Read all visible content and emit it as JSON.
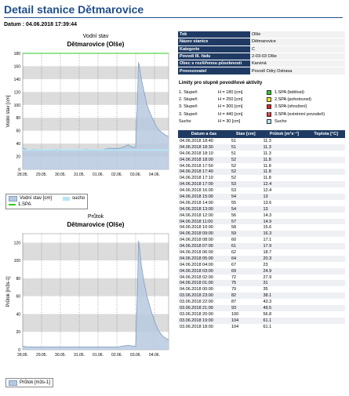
{
  "page": {
    "title": "Detail stanice Dětmarovice",
    "datum": "Datum : 04.06.2018 17:39:44"
  },
  "info": [
    {
      "key": "Tok",
      "value": "Olše"
    },
    {
      "key": "Název stanice",
      "value": "Dětmarovice"
    },
    {
      "key": "Kategorie",
      "value": "C"
    },
    {
      "key": "Povodí III. řádu",
      "value": "2-03-03 Olše"
    },
    {
      "key": "Obec s rozšířenou působností",
      "value": "Karviná"
    },
    {
      "key": "Provozovatel",
      "value": "Povodí Odry Ostrava"
    }
  ],
  "limits": {
    "heading": "Limity pro stupně povodňové aktivity",
    "rows": [
      {
        "level": "1. Stupeň",
        "value": "H = 180 [cm]",
        "color": "#2ecc1f",
        "mark": "",
        "desc": "1.SPA (bdělost)"
      },
      {
        "level": "2. Stupeň",
        "value": "H = 250 [cm]",
        "color": "#f5e11a",
        "mark": "",
        "desc": "2.SPA (pohotovost)"
      },
      {
        "level": "3. Stupeň",
        "value": "H = 300 [cm]",
        "color": "#e02020",
        "mark": "",
        "desc": "3.SPA (ohrožení)"
      },
      {
        "level": "3. Stupeň",
        "value": "H = 440 [cm]",
        "color": "#e02020",
        "mark": "!",
        "desc": "3.SPA (extrémní povodeň)"
      },
      {
        "level": "Sucho",
        "value": "H = 30 [cm]",
        "color": "#b8e4f5",
        "mark": "",
        "desc": "Sucho"
      }
    ]
  },
  "table": {
    "headers": [
      "Datum a čas",
      "Stav [cm]",
      "Průtok [m³s⁻¹]",
      "Teplota [°C]"
    ],
    "rows": [
      [
        "04.06.2018 18:40",
        "51",
        "11.3",
        ""
      ],
      [
        "04.06.2018 18:30",
        "51",
        "11.3",
        ""
      ],
      [
        "04.06.2018 18:10",
        "51",
        "11.3",
        ""
      ],
      [
        "04.06.2018 18:00",
        "52",
        "11.8",
        ""
      ],
      [
        "04.06.2018 17:50",
        "52",
        "11.8",
        ""
      ],
      [
        "04.06.2018 17:40",
        "52",
        "11.8",
        ""
      ],
      [
        "04.06.2018 17:10",
        "52",
        "11.8",
        ""
      ],
      [
        "04.06.2018 17:00",
        "53",
        "12.4",
        ""
      ],
      [
        "04.06.2018 16:00",
        "53",
        "12.4",
        ""
      ],
      [
        "04.06.2018 15:00",
        "54",
        "13",
        ""
      ],
      [
        "04.06.2018 14:00",
        "55",
        "13.6",
        ""
      ],
      [
        "04.06.2018 13:00",
        "54",
        "13",
        ""
      ],
      [
        "04.06.2018 12:00",
        "56",
        "14.3",
        ""
      ],
      [
        "04.06.2018 11:00",
        "57",
        "14.9",
        ""
      ],
      [
        "04.06.2018 10:00",
        "58",
        "15.6",
        ""
      ],
      [
        "04.06.2018 09:00",
        "59",
        "16.3",
        ""
      ],
      [
        "04.06.2018 08:00",
        "60",
        "17.1",
        ""
      ],
      [
        "04.06.2018 07:00",
        "61",
        "17.9",
        ""
      ],
      [
        "04.06.2018 06:00",
        "62",
        "18.7",
        ""
      ],
      [
        "04.06.2018 05:00",
        "64",
        "20.3",
        ""
      ],
      [
        "04.06.2018 04:00",
        "67",
        "23",
        ""
      ],
      [
        "04.06.2018 03:00",
        "69",
        "24.9",
        ""
      ],
      [
        "04.06.2018 02:00",
        "72",
        "27.9",
        ""
      ],
      [
        "04.06.2018 01:00",
        "75",
        "31",
        ""
      ],
      [
        "04.06.2018 00:00",
        "79",
        "35",
        ""
      ],
      [
        "03.06.2018 23:00",
        "82",
        "38.1",
        ""
      ],
      [
        "03.06.2018 22:00",
        "87",
        "43.3",
        ""
      ],
      [
        "03.06.2018 21:00",
        "93",
        "49.5",
        ""
      ],
      [
        "03.06.2018 20:00",
        "100",
        "56.8",
        ""
      ],
      [
        "03.06.2018 19:00",
        "104",
        "61.1",
        ""
      ],
      [
        "03.06.2018 18:00",
        "104",
        "61.1",
        ""
      ]
    ]
  },
  "legend1": {
    "series": "Vodní stav [cm]",
    "sucho": "sucho",
    "spa": "1.SPA"
  },
  "legend2": {
    "series": "Průtok [m3s-1]"
  },
  "chart_data": [
    {
      "type": "area",
      "title": "Vodní stav",
      "subtitle": "Dětmarovice (Olše)",
      "xlabel": "",
      "ylabel": "Vodní stav [cm]",
      "x_ticks": [
        "28.05.",
        "29.05.",
        "30.05.",
        "31.05.",
        "01.06.",
        "02.06.",
        "03.06.",
        "04.06."
      ],
      "xlim": [
        0,
        7.75
      ],
      "ylim": [
        0,
        180
      ],
      "y_ticks": [
        0,
        20,
        40,
        60,
        80,
        100,
        120,
        140,
        160,
        180
      ],
      "grid": true,
      "series": [
        {
          "name": "Vodní stav [cm]",
          "color": "#7f9fc4",
          "x": [
            0,
            0.3,
            0.6,
            1.0,
            1.4,
            1.8,
            2.2,
            2.6,
            3.0,
            3.4,
            3.8,
            4.2,
            4.6,
            5.0,
            5.3,
            5.6,
            5.85,
            6.0,
            6.1,
            6.15,
            6.2,
            6.3,
            6.45,
            6.6,
            6.8,
            7.0,
            7.2,
            7.4,
            7.6,
            7.75
          ],
          "y": [
            33,
            30,
            31,
            30,
            30,
            31,
            30,
            30,
            30,
            31,
            30,
            30,
            33,
            32,
            34,
            38,
            34,
            35,
            110,
            166,
            160,
            140,
            120,
            100,
            85,
            72,
            62,
            57,
            53,
            51
          ]
        },
        {
          "name": "sucho",
          "color": "#b8e4f5",
          "x": [
            0,
            7.75
          ],
          "y": [
            30,
            30
          ]
        },
        {
          "name": "1.SPA",
          "color": "#2ecc1f",
          "x": [
            0,
            7.75
          ],
          "y": [
            180,
            180
          ]
        }
      ]
    },
    {
      "type": "area",
      "title": "Průtok",
      "subtitle": "Dětmarovice (Olše)",
      "xlabel": "",
      "ylabel": "Průtok [m3s-1]",
      "x_ticks": [
        "28.05.",
        "29.05.",
        "30.05.",
        "31.05.",
        "01.06.",
        "02.06.",
        "03.06.",
        "04.06."
      ],
      "xlim": [
        0,
        7.75
      ],
      "ylim": [
        0,
        130
      ],
      "y_ticks": [
        0,
        20,
        40,
        60,
        80,
        100,
        120
      ],
      "grid": true,
      "series": [
        {
          "name": "Průtok [m3s-1]",
          "color": "#7f9fc4",
          "x": [
            0,
            0.3,
            0.6,
            1.0,
            1.4,
            1.8,
            2.2,
            2.6,
            3.0,
            3.4,
            3.8,
            4.2,
            4.6,
            5.0,
            5.3,
            5.6,
            5.85,
            6.0,
            6.1,
            6.15,
            6.2,
            6.3,
            6.45,
            6.6,
            6.8,
            7.0,
            7.2,
            7.4,
            7.6,
            7.75
          ],
          "y": [
            4,
            3,
            3,
            3,
            3,
            3,
            3,
            3,
            3,
            3,
            3,
            3,
            3,
            3,
            4,
            5,
            4,
            4,
            70,
            122,
            115,
            95,
            75,
            60,
            45,
            32,
            22,
            16,
            13,
            11
          ]
        }
      ]
    }
  ]
}
